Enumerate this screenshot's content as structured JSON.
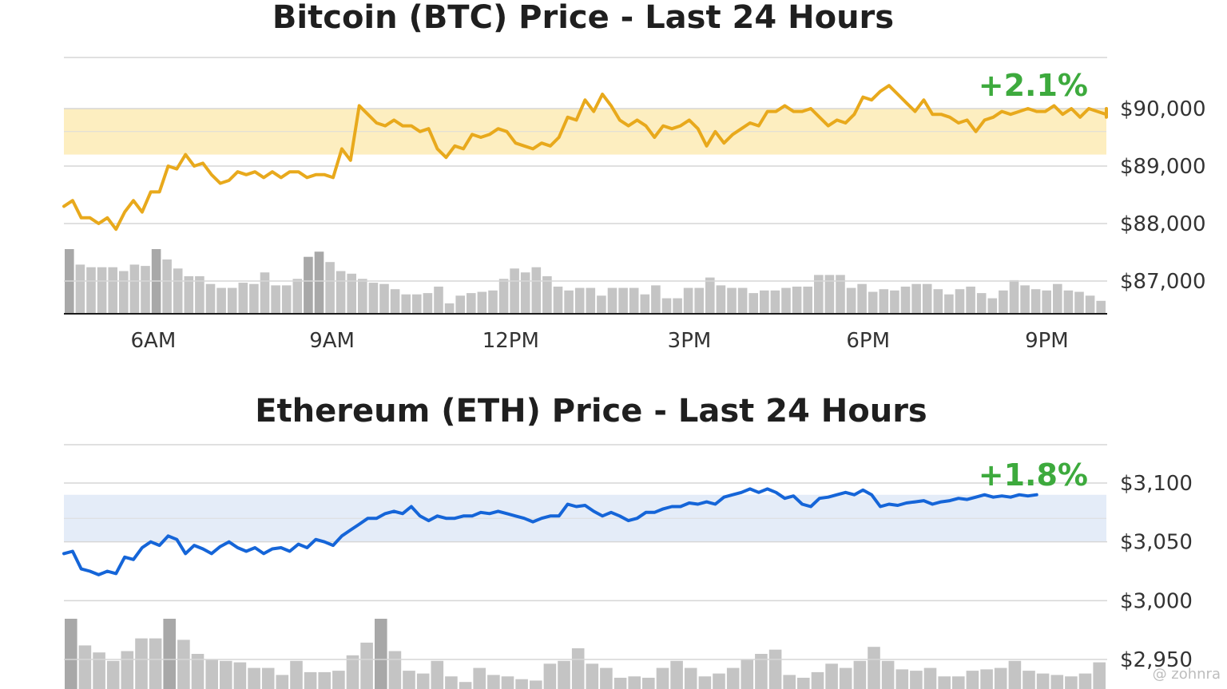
{
  "chart_data": [
    {
      "type": "line",
      "title": "Bitcoin (BTC) Price - Last 24 Hours",
      "change_label": "+2.1%",
      "line_color": "#e8a91c",
      "band_color": "#fdeec0",
      "change_color": "#3daa3d",
      "volume_color": "#c4c4c4",
      "ylabels": [
        "$90,000",
        "$89,000",
        "$88,000",
        "$87,000"
      ],
      "yticks": [
        90000,
        89000,
        88000,
        87000
      ],
      "band": [
        89200,
        90000
      ],
      "xlabels": [
        "6AM",
        "9AM",
        "12PM",
        "3PM",
        "6PM",
        "9PM"
      ],
      "xticks": [
        6,
        9,
        12,
        15,
        18,
        21
      ],
      "xlim": [
        4.5,
        22.0
      ],
      "series": [
        {
          "x_start": 4.5,
          "x_step": 0.1458,
          "values": [
            88300,
            88400,
            88100,
            88100,
            88000,
            88100,
            87900,
            88200,
            88400,
            88200,
            88550,
            88550,
            89000,
            88950,
            89200,
            89000,
            89050,
            88850,
            88700,
            88750,
            88900,
            88850,
            88900,
            88800,
            88900,
            88800,
            88900,
            88900,
            88800,
            88850,
            88850,
            88800,
            89300,
            89100,
            90050,
            89900,
            89750,
            89700,
            89800,
            89700,
            89700,
            89600,
            89650,
            89300,
            89150,
            89350,
            89300,
            89550,
            89500,
            89550,
            89650,
            89600,
            89400,
            89350,
            89300,
            89400,
            89350,
            89500,
            89850,
            89800,
            90150,
            89950,
            90250,
            90050,
            89800,
            89700,
            89800,
            89700,
            89500,
            89700,
            89650,
            89700,
            89800,
            89650,
            89350,
            89600,
            89400,
            89550,
            89650,
            89750,
            89700,
            89950,
            89950,
            90050,
            89950,
            89950,
            90000,
            89850,
            89700,
            89800,
            89750,
            89900,
            90200,
            90150,
            90300,
            90400,
            90250,
            90100,
            89950,
            90150,
            89900,
            89900,
            89850,
            89750,
            89800,
            89600,
            89800,
            89850,
            89950,
            89900,
            89950,
            90000,
            89950,
            89950,
            90050,
            89900,
            90000,
            89850,
            90000,
            89950,
            89900,
            89850,
            90000
          ]
        }
      ],
      "volume": [
        0.1,
        0.076,
        0.072,
        0.072,
        0.072,
        0.066,
        0.076,
        0.074,
        0.1,
        0.084,
        0.07,
        0.058,
        0.058,
        0.046,
        0.04,
        0.04,
        0.048,
        0.046,
        0.064,
        0.044,
        0.044,
        0.054,
        0.088,
        0.096,
        0.08,
        0.066,
        0.062,
        0.054,
        0.048,
        0.046,
        0.038,
        0.03,
        0.03,
        0.032,
        0.042,
        0.016,
        0.028,
        0.032,
        0.034,
        0.036,
        0.054,
        0.07,
        0.064,
        0.072,
        0.058,
        0.042,
        0.036,
        0.04,
        0.04,
        0.028,
        0.04,
        0.04,
        0.04,
        0.03,
        0.044,
        0.024,
        0.024,
        0.04,
        0.04,
        0.056,
        0.044,
        0.04,
        0.04,
        0.032,
        0.036,
        0.036,
        0.04,
        0.042,
        0.042,
        0.06,
        0.06,
        0.06,
        0.04,
        0.046,
        0.034,
        0.038,
        0.036,
        0.042,
        0.046,
        0.046,
        0.038,
        0.03,
        0.038,
        0.042,
        0.032,
        0.024,
        0.036,
        0.052,
        0.044,
        0.038,
        0.036,
        0.046,
        0.036,
        0.034,
        0.028,
        0.02
      ]
    },
    {
      "type": "line",
      "title": "Ethereum (ETH) Price - Last 24 Hours",
      "change_label": "+1.8%",
      "line_color": "#1565d8",
      "band_color": "#e4ecf8",
      "change_color": "#3daa3d",
      "volume_color": "#c4c4c4",
      "ylabels": [
        "$3,100",
        "$3,050",
        "$3,000",
        "$2,950"
      ],
      "yticks": [
        3100,
        3050,
        3000,
        2950
      ],
      "band": [
        3050,
        3090
      ],
      "xlabels": [],
      "xticks": [],
      "xlim": [
        4.5,
        22.0
      ],
      "series": [
        {
          "x_start": 4.5,
          "x_step": 0.1458,
          "values": [
            3040,
            3042,
            3027,
            3025,
            3022,
            3025,
            3023,
            3037,
            3035,
            3045,
            3050,
            3047,
            3055,
            3052,
            3040,
            3047,
            3044,
            3040,
            3046,
            3050,
            3045,
            3042,
            3045,
            3040,
            3044,
            3045,
            3042,
            3048,
            3045,
            3052,
            3050,
            3047,
            3055,
            3060,
            3065,
            3070,
            3070,
            3074,
            3076,
            3074,
            3080,
            3072,
            3068,
            3072,
            3070,
            3070,
            3072,
            3072,
            3075,
            3074,
            3076,
            3074,
            3072,
            3070,
            3067,
            3070,
            3072,
            3072,
            3082,
            3080,
            3081,
            3076,
            3072,
            3075,
            3072,
            3068,
            3070,
            3075,
            3075,
            3078,
            3080,
            3080,
            3083,
            3082,
            3084,
            3082,
            3088,
            3090,
            3092,
            3095,
            3092,
            3095,
            3092,
            3087,
            3089,
            3082,
            3080,
            3087,
            3088,
            3090,
            3092,
            3090,
            3094,
            3090,
            3080,
            3082,
            3081,
            3083,
            3084,
            3085,
            3082,
            3084,
            3085,
            3087,
            3086,
            3088,
            3090,
            3088,
            3089,
            3088,
            3090,
            3089,
            3090
          ]
        }
      ],
      "volume": [
        0.1,
        0.062,
        0.052,
        0.04,
        0.054,
        0.072,
        0.072,
        0.1,
        0.07,
        0.05,
        0.042,
        0.04,
        0.038,
        0.03,
        0.03,
        0.02,
        0.04,
        0.024,
        0.024,
        0.026,
        0.048,
        0.066,
        0.1,
        0.054,
        0.026,
        0.022,
        0.04,
        0.018,
        0.01,
        0.03,
        0.02,
        0.018,
        0.014,
        0.012,
        0.036,
        0.04,
        0.058,
        0.036,
        0.03,
        0.016,
        0.018,
        0.016,
        0.03,
        0.04,
        0.03,
        0.018,
        0.022,
        0.03,
        0.042,
        0.05,
        0.056,
        0.02,
        0.016,
        0.024,
        0.036,
        0.03,
        0.04,
        0.06,
        0.04,
        0.028,
        0.026,
        0.03,
        0.018,
        0.018,
        0.026,
        0.028,
        0.03,
        0.04,
        0.026,
        0.022,
        0.02,
        0.018,
        0.022,
        0.038
      ]
    }
  ],
  "watermark": "@ zohnra"
}
